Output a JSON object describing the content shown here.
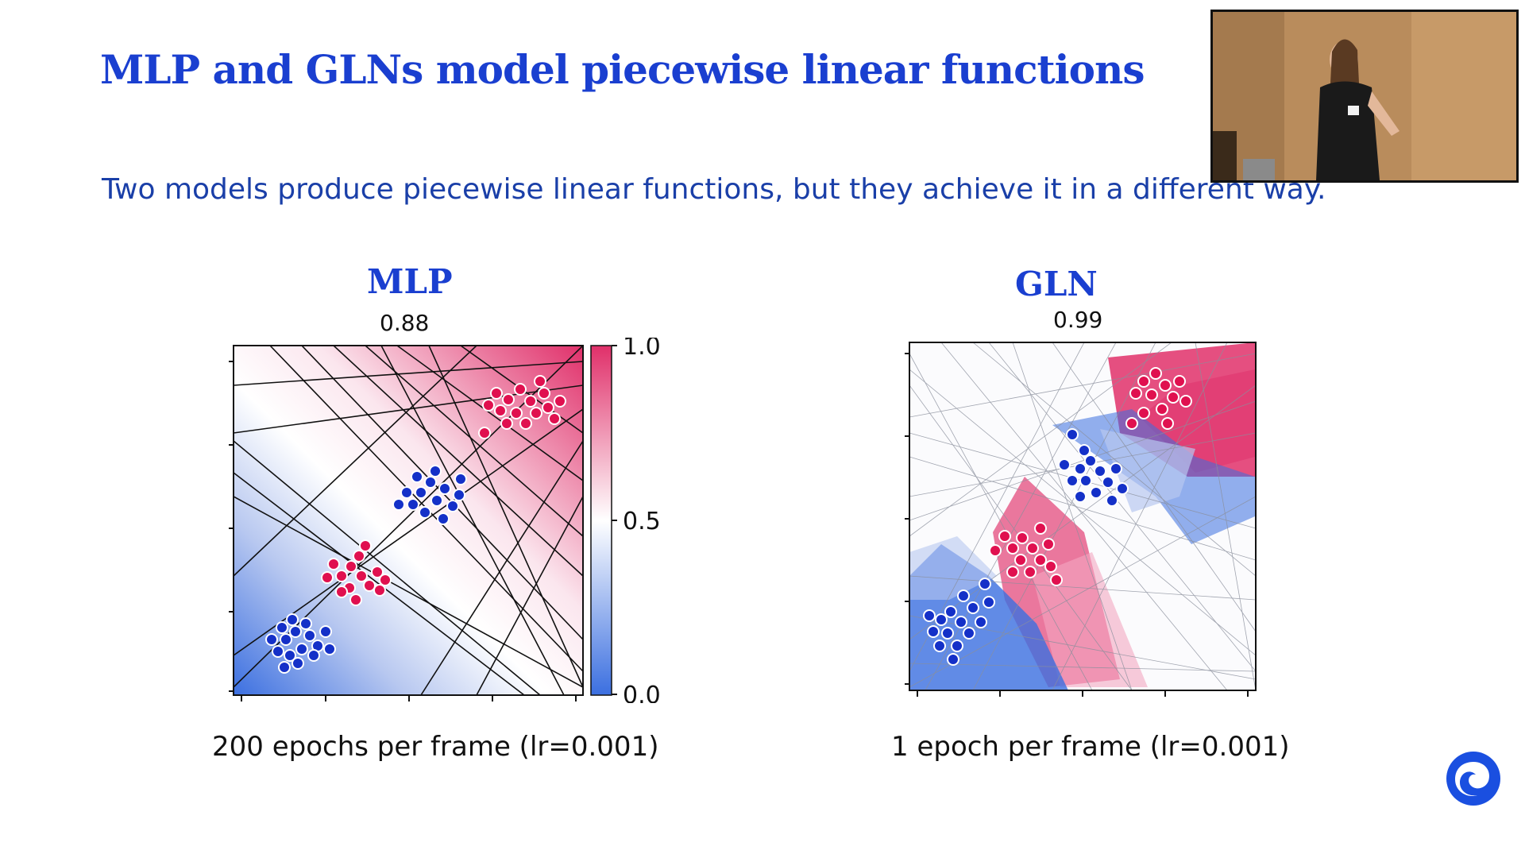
{
  "slide": {
    "title": "MLP and GLNs model piecewise linear functions",
    "subtitle": "Two models produce piecewise linear functions, but they achieve it in a different way."
  },
  "panels": [
    {
      "title": "MLP",
      "accuracy": "0.88",
      "caption": "200 epochs per frame (lr=0.001)"
    },
    {
      "title": "GLN",
      "accuracy": "0.99",
      "caption": "1 epoch per frame (lr=0.001)"
    }
  ],
  "colorbar": {
    "labels": [
      "1.0",
      "0.5",
      "0.0"
    ],
    "low_color": "#3b6fe0",
    "mid_color": "#ffffff",
    "high_color": "#e0306a"
  },
  "colors": {
    "title": "#1a3fd0",
    "subtitle": "#1a3fa8",
    "class_blue": "#1430c8",
    "class_red": "#e0104f"
  },
  "icons": {
    "logo": "deepmind-logo-icon",
    "video": "speaker-video-thumbnail"
  }
}
